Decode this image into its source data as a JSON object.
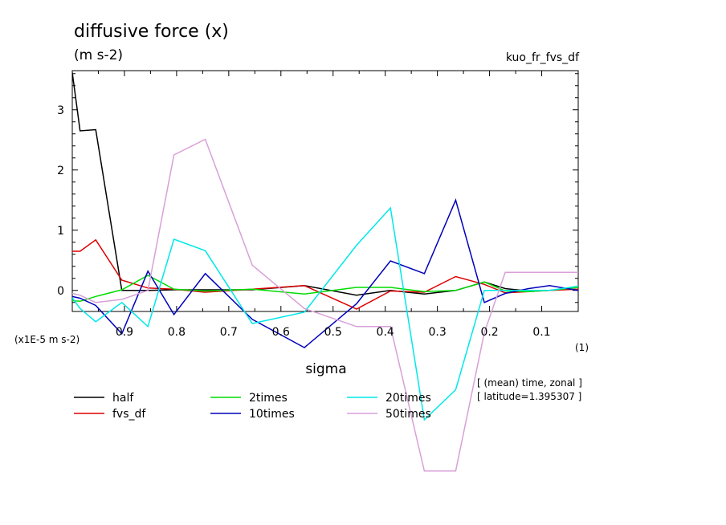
{
  "title": "diffusive force (x)",
  "units": "(m s-2)",
  "variable_name": "kuo_fr_fvs_df",
  "y_scale_label": "(x1E-5 m s-2)",
  "x_unit_label": "(1)",
  "info_lines": [
    "[ (mean) time, zonal ]",
    "[ latitude=1.395307 ]"
  ],
  "colors": {
    "half": "#000000",
    "fvs_df": "#dd0000",
    "2times": "#00dd00",
    "10times": "#0000bb",
    "20times": "#00e8e8",
    "50times": "#d8a0d8"
  },
  "chart_data": {
    "type": "line",
    "title": "diffusive force (x)",
    "xlabel": "sigma",
    "ylabel": "(m s-2)",
    "xlim": [
      1.0,
      0.03
    ],
    "ylim": [
      -0.35,
      3.65
    ],
    "xticks": [
      0.9,
      0.8,
      0.7,
      0.6,
      0.5,
      0.4,
      0.3,
      0.2,
      0.1
    ],
    "xtick_labels": [
      "0.9",
      "0.8",
      "0.7",
      "0.6",
      "0.5",
      "0.4",
      "0.3",
      "0.2",
      "0.1"
    ],
    "yticks": [
      0,
      1,
      2,
      3
    ],
    "ytick_labels": [
      "0",
      "1",
      "2",
      "3"
    ],
    "grid": false,
    "legend_position": "below",
    "x": [
      1.0,
      0.985,
      0.955,
      0.905,
      0.855,
      0.805,
      0.745,
      0.655,
      0.555,
      0.455,
      0.39,
      0.325,
      0.265,
      0.21,
      0.17,
      0.125,
      0.085,
      0.03
    ],
    "series": [
      {
        "name": "half",
        "values": [
          3.62,
          2.65,
          2.67,
          0.0,
          0.0,
          0.01,
          0.01,
          0.01,
          0.08,
          -0.08,
          0.0,
          -0.06,
          0.0,
          0.14,
          0.03,
          -0.01,
          0.0,
          0.05
        ]
      },
      {
        "name": "fvs_df",
        "values": [
          0.65,
          0.65,
          0.84,
          0.17,
          0.04,
          0.02,
          -0.03,
          0.02,
          0.08,
          -0.31,
          -0.01,
          -0.03,
          0.23,
          0.1,
          -0.04,
          -0.02,
          0.0,
          0.02
        ]
      },
      {
        "name": "2times",
        "values": [
          -0.17,
          -0.18,
          -0.1,
          0.01,
          0.25,
          0.02,
          -0.01,
          0.02,
          -0.06,
          0.05,
          0.05,
          -0.02,
          0.0,
          0.14,
          -0.01,
          -0.02,
          0.0,
          0.05
        ]
      },
      {
        "name": "10times",
        "values": [
          -0.1,
          -0.13,
          -0.25,
          -0.72,
          0.32,
          -0.4,
          0.28,
          -0.48,
          -0.95,
          -0.22,
          0.49,
          0.28,
          1.5,
          -0.2,
          -0.05,
          0.03,
          0.08,
          0.0
        ]
      },
      {
        "name": "20times",
        "values": [
          -0.12,
          -0.3,
          -0.52,
          -0.2,
          -0.6,
          0.85,
          0.66,
          -0.55,
          -0.36,
          0.75,
          1.37,
          -2.15,
          -1.65,
          0.0,
          0.0,
          0.0,
          0.0,
          0.07
        ]
      },
      {
        "name": "50times",
        "values": [
          -0.05,
          -0.08,
          -0.2,
          -0.15,
          0.0,
          2.25,
          2.51,
          0.42,
          -0.3,
          -0.6,
          -0.6,
          -3.0,
          -3.0,
          -0.7,
          0.3,
          0.3,
          0.3,
          0.3
        ]
      }
    ]
  }
}
